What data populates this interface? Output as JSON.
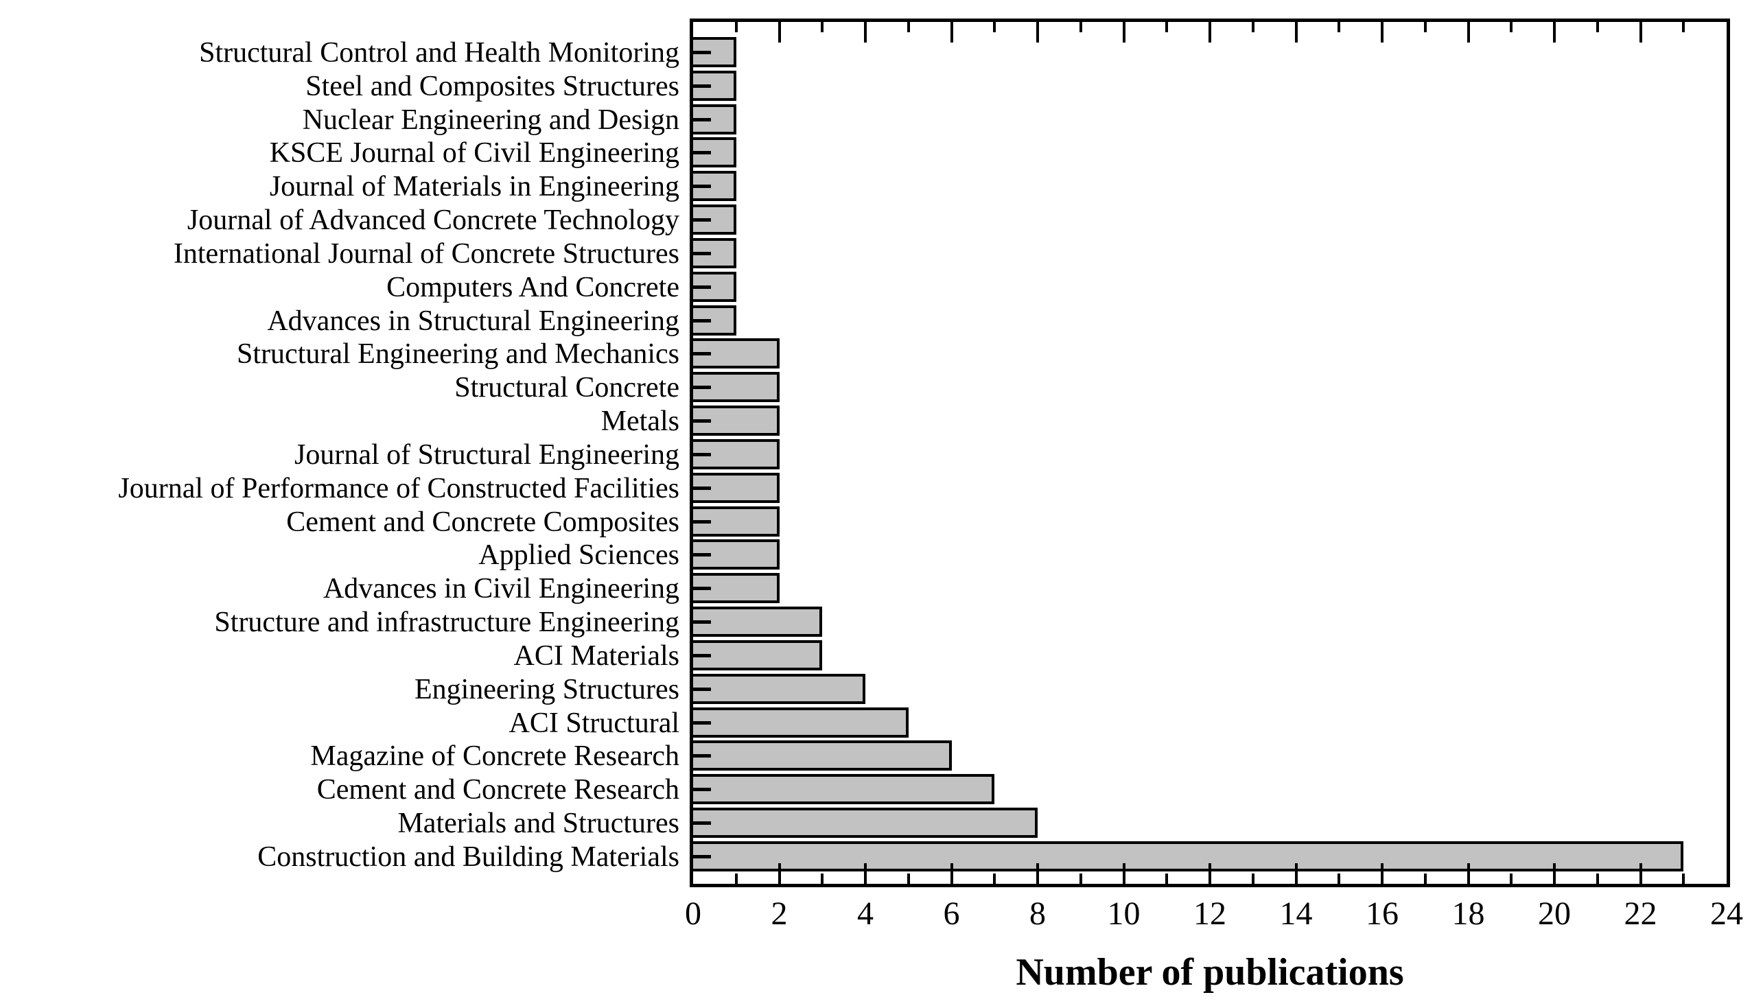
{
  "chart_data": {
    "type": "bar",
    "orientation": "horizontal",
    "title": "",
    "xlabel": "Number of publications",
    "ylabel": "",
    "categories": [
      "Structural Control and Health Monitoring",
      "Steel and Composites Structures",
      "Nuclear Engineering and Design",
      "KSCE Journal of Civil Engineering",
      "Journal of Materials in Engineering",
      "Journal of Advanced Concrete Technology",
      "International  Journal of Concrete Structures",
      "Computers And Concrete",
      "Advances in Structural Engineering",
      "Structural Engineering and Mechanics",
      "Structural Concrete",
      "Metals",
      "Journal of Structural Engineering",
      "Journal of Performance of Constructed Facilities",
      "Cement and Concrete Composites",
      "Applied Sciences",
      "Advances in Civil Engineering",
      "Structure and infrastructure Engineering",
      "ACI Materials",
      "Engineering Structures",
      "ACI Structural",
      "Magazine of Concrete Research",
      "Cement and Concrete Research",
      "Materials and Structures",
      "Construction and Building Materials"
    ],
    "values": [
      1,
      1,
      1,
      1,
      1,
      1,
      1,
      1,
      1,
      2,
      2,
      2,
      2,
      2,
      2,
      2,
      2,
      3,
      3,
      4,
      5,
      6,
      7,
      8,
      23
    ],
    "xlim": [
      0,
      24
    ],
    "xtick_labels": [
      "0",
      "2",
      "4",
      "6",
      "8",
      "10",
      "12",
      "14",
      "16",
      "18",
      "20",
      "22",
      "24"
    ],
    "xtick_step": 2,
    "minor_tick_step": 1,
    "grid": "off",
    "legend": "none",
    "bar_fill_color": "#c2c2c2",
    "bar_border_color": "#000000",
    "axis_color": "#000000",
    "background_color": "#ffffff"
  }
}
